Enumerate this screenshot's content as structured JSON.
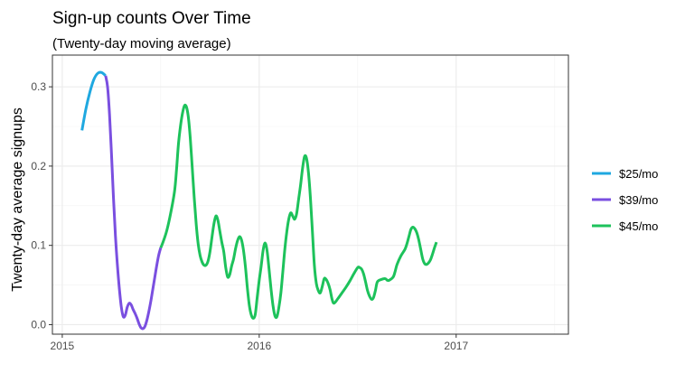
{
  "chart_data": {
    "type": "line",
    "title": "Sign-up counts Over Time",
    "subtitle": "(Twenty-day moving average)",
    "xlabel": "",
    "ylabel": "Twenty-day average signups",
    "x_ticks": [
      "2015",
      "2016",
      "2017"
    ],
    "y_ticks": [
      "0.0",
      "0.1",
      "0.2",
      "0.3"
    ],
    "xlim": [
      2014.95,
      2017.57
    ],
    "ylim": [
      -0.012,
      0.34
    ],
    "grid": true,
    "legend_position": "right",
    "series": [
      {
        "name": "$25/mo",
        "color": "#1fa8e0",
        "points": [
          [
            2015.1,
            0.245
          ],
          [
            2015.12,
            0.272
          ],
          [
            2015.14,
            0.293
          ],
          [
            2015.16,
            0.309
          ],
          [
            2015.18,
            0.317
          ],
          [
            2015.2,
            0.318
          ],
          [
            2015.22,
            0.314
          ]
        ]
      },
      {
        "name": "$39/mo",
        "color": "#7a4fe0",
        "points": [
          [
            2015.22,
            0.314
          ],
          [
            2015.23,
            0.3
          ],
          [
            2015.24,
            0.265
          ],
          [
            2015.25,
            0.215
          ],
          [
            2015.26,
            0.16
          ],
          [
            2015.27,
            0.112
          ],
          [
            2015.28,
            0.075
          ],
          [
            2015.29,
            0.045
          ],
          [
            2015.3,
            0.022
          ],
          [
            2015.31,
            0.01
          ],
          [
            2015.32,
            0.012
          ],
          [
            2015.33,
            0.022
          ],
          [
            2015.34,
            0.027
          ],
          [
            2015.35,
            0.025
          ],
          [
            2015.36,
            0.019
          ],
          [
            2015.37,
            0.014
          ],
          [
            2015.38,
            0.008
          ],
          [
            2015.39,
            0.001
          ],
          [
            2015.4,
            -0.004
          ],
          [
            2015.41,
            -0.005
          ],
          [
            2015.42,
            -0.002
          ],
          [
            2015.43,
            0.006
          ],
          [
            2015.44,
            0.017
          ],
          [
            2015.45,
            0.03
          ],
          [
            2015.46,
            0.045
          ],
          [
            2015.47,
            0.06
          ],
          [
            2015.48,
            0.075
          ],
          [
            2015.49,
            0.088
          ],
          [
            2015.5,
            0.097
          ]
        ]
      },
      {
        "name": "$45/mo",
        "color": "#1dc25b",
        "points": [
          [
            2015.5,
            0.097
          ],
          [
            2015.51,
            0.103
          ],
          [
            2015.53,
            0.118
          ],
          [
            2015.55,
            0.14
          ],
          [
            2015.57,
            0.168
          ],
          [
            2015.58,
            0.195
          ],
          [
            2015.59,
            0.228
          ],
          [
            2015.6,
            0.25
          ],
          [
            2015.61,
            0.266
          ],
          [
            2015.62,
            0.276
          ],
          [
            2015.63,
            0.275
          ],
          [
            2015.64,
            0.262
          ],
          [
            2015.65,
            0.235
          ],
          [
            2015.66,
            0.198
          ],
          [
            2015.67,
            0.16
          ],
          [
            2015.68,
            0.127
          ],
          [
            2015.69,
            0.102
          ],
          [
            2015.7,
            0.087
          ],
          [
            2015.71,
            0.079
          ],
          [
            2015.72,
            0.075
          ],
          [
            2015.73,
            0.075
          ],
          [
            2015.74,
            0.08
          ],
          [
            2015.75,
            0.092
          ],
          [
            2015.76,
            0.11
          ],
          [
            2015.77,
            0.127
          ],
          [
            2015.78,
            0.137
          ],
          [
            2015.79,
            0.132
          ],
          [
            2015.8,
            0.118
          ],
          [
            2015.81,
            0.104
          ],
          [
            2015.82,
            0.092
          ],
          [
            2015.83,
            0.072
          ],
          [
            2015.84,
            0.06
          ],
          [
            2015.85,
            0.063
          ],
          [
            2015.86,
            0.074
          ],
          [
            2015.87,
            0.083
          ],
          [
            2015.88,
            0.096
          ],
          [
            2015.89,
            0.106
          ],
          [
            2015.9,
            0.111
          ],
          [
            2015.91,
            0.107
          ],
          [
            2015.92,
            0.094
          ],
          [
            2015.93,
            0.073
          ],
          [
            2015.94,
            0.046
          ],
          [
            2015.95,
            0.024
          ],
          [
            2015.96,
            0.012
          ],
          [
            2015.97,
            0.008
          ],
          [
            2015.98,
            0.013
          ],
          [
            2015.99,
            0.035
          ],
          [
            2016.0,
            0.056
          ],
          [
            2016.01,
            0.074
          ],
          [
            2016.02,
            0.094
          ],
          [
            2016.03,
            0.103
          ],
          [
            2016.04,
            0.093
          ],
          [
            2016.05,
            0.07
          ],
          [
            2016.06,
            0.045
          ],
          [
            2016.07,
            0.024
          ],
          [
            2016.08,
            0.011
          ],
          [
            2016.09,
            0.01
          ],
          [
            2016.1,
            0.022
          ],
          [
            2016.11,
            0.04
          ],
          [
            2016.12,
            0.067
          ],
          [
            2016.13,
            0.095
          ],
          [
            2016.14,
            0.117
          ],
          [
            2016.15,
            0.133
          ],
          [
            2016.16,
            0.141
          ],
          [
            2016.17,
            0.137
          ],
          [
            2016.18,
            0.133
          ],
          [
            2016.19,
            0.14
          ],
          [
            2016.2,
            0.158
          ],
          [
            2016.21,
            0.176
          ],
          [
            2016.22,
            0.197
          ],
          [
            2016.23,
            0.212
          ],
          [
            2016.24,
            0.21
          ],
          [
            2016.25,
            0.192
          ],
          [
            2016.26,
            0.16
          ],
          [
            2016.27,
            0.118
          ],
          [
            2016.28,
            0.075
          ],
          [
            2016.29,
            0.052
          ],
          [
            2016.3,
            0.043
          ],
          [
            2016.31,
            0.04
          ],
          [
            2016.32,
            0.048
          ],
          [
            2016.33,
            0.058
          ],
          [
            2016.34,
            0.057
          ],
          [
            2016.35,
            0.052
          ],
          [
            2016.36,
            0.044
          ],
          [
            2016.37,
            0.032
          ],
          [
            2016.38,
            0.027
          ],
          [
            2016.4,
            0.033
          ],
          [
            2016.42,
            0.04
          ],
          [
            2016.44,
            0.047
          ],
          [
            2016.46,
            0.055
          ],
          [
            2016.48,
            0.064
          ],
          [
            2016.5,
            0.072
          ],
          [
            2016.51,
            0.072
          ],
          [
            2016.52,
            0.07
          ],
          [
            2016.53,
            0.064
          ],
          [
            2016.54,
            0.054
          ],
          [
            2016.55,
            0.043
          ],
          [
            2016.56,
            0.036
          ],
          [
            2016.57,
            0.032
          ],
          [
            2016.58,
            0.034
          ],
          [
            2016.59,
            0.043
          ],
          [
            2016.6,
            0.054
          ],
          [
            2016.62,
            0.057
          ],
          [
            2016.64,
            0.058
          ],
          [
            2016.65,
            0.056
          ],
          [
            2016.66,
            0.056
          ],
          [
            2016.68,
            0.06
          ],
          [
            2016.69,
            0.067
          ],
          [
            2016.7,
            0.076
          ],
          [
            2016.72,
            0.087
          ],
          [
            2016.74,
            0.095
          ],
          [
            2016.75,
            0.102
          ],
          [
            2016.76,
            0.111
          ],
          [
            2016.77,
            0.12
          ],
          [
            2016.78,
            0.123
          ],
          [
            2016.79,
            0.121
          ],
          [
            2016.8,
            0.116
          ],
          [
            2016.81,
            0.107
          ],
          [
            2016.82,
            0.095
          ],
          [
            2016.83,
            0.083
          ],
          [
            2016.84,
            0.077
          ],
          [
            2016.85,
            0.076
          ],
          [
            2016.86,
            0.078
          ],
          [
            2016.87,
            0.082
          ],
          [
            2016.88,
            0.089
          ],
          [
            2016.89,
            0.097
          ],
          [
            2016.9,
            0.104
          ]
        ]
      }
    ]
  }
}
